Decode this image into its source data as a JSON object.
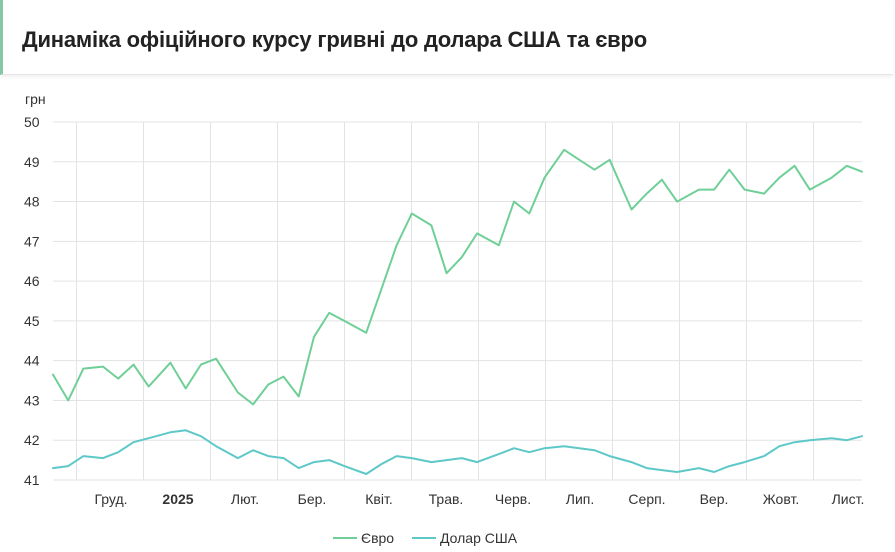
{
  "title": "Динаміка офіційного курсу гривні до долара США та євро",
  "chart_data": {
    "type": "line",
    "title": "Динаміка офіційного курсу гривні до долара США та євро",
    "ylabel": "грн",
    "ylim": [
      41,
      50
    ],
    "yticks": [
      "50",
      "49",
      "48",
      "47",
      "46",
      "45",
      "44",
      "43",
      "42",
      "41"
    ],
    "xticks": [
      {
        "label": "Груд.",
        "bold": false
      },
      {
        "label": "2025",
        "bold": true
      },
      {
        "label": "Лют.",
        "bold": false
      },
      {
        "label": "Бер.",
        "bold": false
      },
      {
        "label": "Квіт.",
        "bold": false
      },
      {
        "label": "Трав.",
        "bold": false
      },
      {
        "label": "Черв.",
        "bold": false
      },
      {
        "label": "Лип.",
        "bold": false
      },
      {
        "label": "Серп.",
        "bold": false
      },
      {
        "label": "Вер.",
        "bold": false
      },
      {
        "label": "Жовт.",
        "bold": false
      },
      {
        "label": "Лист.",
        "bold": false
      }
    ],
    "x": [
      "2024-11-08",
      "2024-11-15",
      "2024-11-22",
      "2024-12-01",
      "2024-12-08",
      "2024-12-15",
      "2024-12-22",
      "2025-01-01",
      "2025-01-08",
      "2025-01-15",
      "2025-01-22",
      "2025-02-01",
      "2025-02-08",
      "2025-02-15",
      "2025-02-22",
      "2025-03-01",
      "2025-03-08",
      "2025-03-15",
      "2025-03-22",
      "2025-04-01",
      "2025-04-08",
      "2025-04-15",
      "2025-04-22",
      "2025-05-01",
      "2025-05-08",
      "2025-05-15",
      "2025-05-22",
      "2025-06-01",
      "2025-06-08",
      "2025-06-15",
      "2025-06-22",
      "2025-07-01",
      "2025-07-08",
      "2025-07-15",
      "2025-07-22",
      "2025-08-01",
      "2025-08-08",
      "2025-08-15",
      "2025-08-22",
      "2025-09-01",
      "2025-09-08",
      "2025-09-15",
      "2025-09-22",
      "2025-10-01",
      "2025-10-08",
      "2025-10-15",
      "2025-10-22",
      "2025-11-01",
      "2025-11-08",
      "2025-11-15"
    ],
    "series": [
      {
        "name": "Євро",
        "color": "#6fcf97",
        "values": [
          43.65,
          43.0,
          43.8,
          43.85,
          43.55,
          43.9,
          43.35,
          43.95,
          43.3,
          43.9,
          44.05,
          43.2,
          42.9,
          43.4,
          43.6,
          43.1,
          44.6,
          45.2,
          45.0,
          44.7,
          45.8,
          46.9,
          47.7,
          47.4,
          46.2,
          46.6,
          47.2,
          46.9,
          48.0,
          47.7,
          48.6,
          49.3,
          49.05,
          48.8,
          49.05,
          47.8,
          48.2,
          48.55,
          48.0,
          48.3,
          48.3,
          48.8,
          48.3,
          48.2,
          48.6,
          48.9,
          48.3,
          48.6,
          48.9,
          48.75
        ]
      },
      {
        "name": "Долар США",
        "color": "#5ec8c8",
        "values": [
          41.3,
          41.35,
          41.6,
          41.55,
          41.7,
          41.95,
          42.05,
          42.2,
          42.25,
          42.1,
          41.85,
          41.55,
          41.75,
          41.6,
          41.55,
          41.3,
          41.45,
          41.5,
          41.35,
          41.15,
          41.4,
          41.6,
          41.55,
          41.45,
          41.5,
          41.55,
          41.45,
          41.65,
          41.8,
          41.7,
          41.8,
          41.85,
          41.8,
          41.75,
          41.6,
          41.45,
          41.3,
          41.25,
          41.2,
          41.3,
          41.2,
          41.35,
          41.45,
          41.6,
          41.85,
          41.95,
          42.0,
          42.05,
          42.0,
          42.1
        ]
      }
    ],
    "legend_position": "bottom",
    "grid": true
  }
}
